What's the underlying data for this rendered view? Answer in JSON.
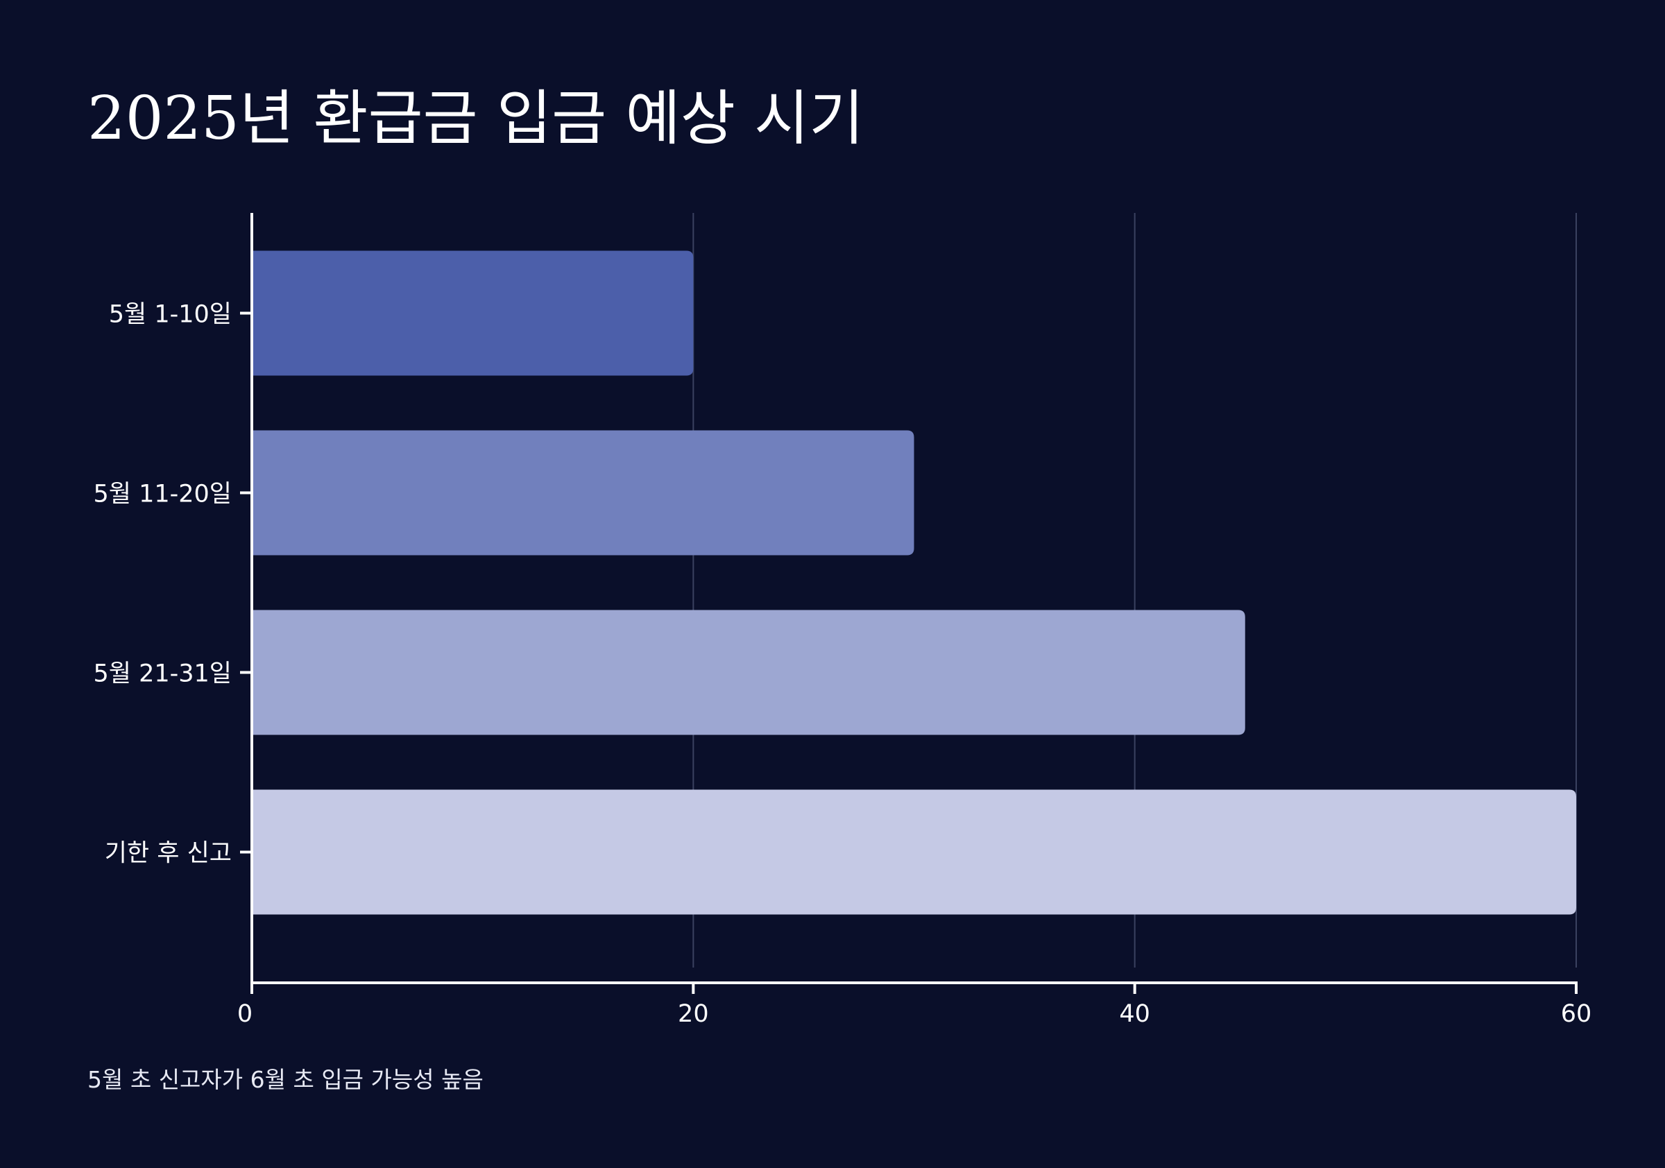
{
  "title": "2025년 환급금 입금 예상 시기",
  "footnote": "5월 초 신고자가 6월 초 입금 가능성 높음",
  "colors": {
    "background": "#0a0f2a",
    "axis": "#ffffff",
    "grid": "#3a4160",
    "text": "#ffffff"
  },
  "chart_data": {
    "type": "bar",
    "orientation": "horizontal",
    "categories": [
      "5월 1-10일",
      "5월 11-20일",
      "5월 21-31일",
      "기한 후 신고"
    ],
    "values": [
      20,
      30,
      45,
      60
    ],
    "bar_colors": [
      "#4c5faa",
      "#7180bd",
      "#9da7d2",
      "#c5c9e5"
    ],
    "xlabel": "",
    "ylabel": "",
    "xlim": [
      0,
      60
    ],
    "xticks": [
      0,
      20,
      40,
      60
    ],
    "grid": "vertical"
  }
}
